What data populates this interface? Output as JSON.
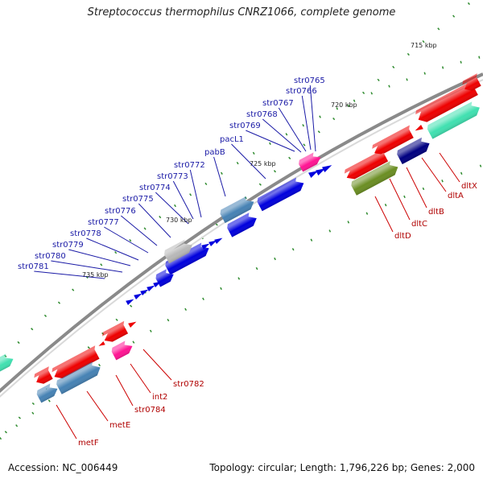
{
  "title": "Streptococcus thermophilus CNRZ1066, complete genome",
  "footer": {
    "accession": "Accession: NC_006449",
    "summary": "Topology: circular; Length: 1,796,226 bp; Genes: 2,000"
  },
  "colors": {
    "forward": "#0000dd",
    "reverse": "#ee0000",
    "steel": "#4682b4",
    "gray": "#b8b8b8",
    "magenta": "#ff1493",
    "olive": "#6b8e23",
    "navy": "#000080",
    "aquamarine": "#40e0b0",
    "tick": "#2e8b2e",
    "backbone": "#8a8a8a"
  },
  "ruler": [
    "715 kbp",
    "720 kbp",
    "725 kbp",
    "730 kbp",
    "735 kbp"
  ],
  "forward_genes": [
    "str0765",
    "str0766",
    "str0767",
    "str0768",
    "str0769",
    "pacL1",
    "pabB",
    "str0772",
    "str0773",
    "str0774",
    "str0775",
    "str0776",
    "str0777",
    "str0778",
    "str0779",
    "str0780",
    "str0781"
  ],
  "reverse_genes": [
    "dltX",
    "dltA",
    "dltB",
    "dltC",
    "dltD",
    "str0782",
    "int2",
    "str0784",
    "metE",
    "metF"
  ]
}
